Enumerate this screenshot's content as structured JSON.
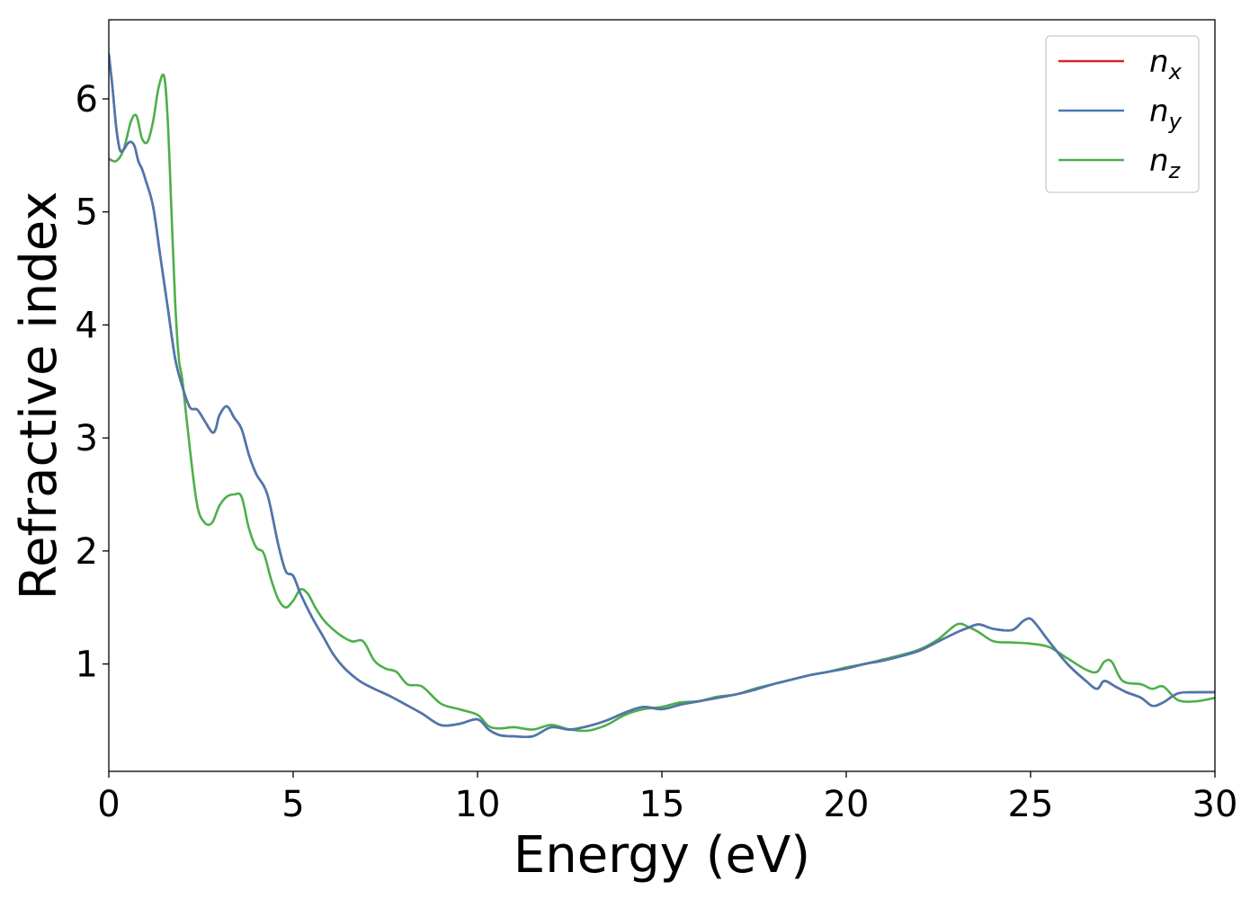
{
  "chart_data": {
    "type": "line",
    "title": "",
    "xlabel": "Energy (eV)",
    "ylabel": "Refractive index",
    "xlim": [
      0,
      30
    ],
    "ylim": [
      0.05,
      6.7
    ],
    "xticks": [
      0,
      5,
      10,
      15,
      20,
      25,
      30
    ],
    "xtick_labels": [
      "0",
      "5",
      "10",
      "15",
      "20",
      "25",
      "30"
    ],
    "yticks": [
      1,
      2,
      3,
      4,
      5,
      6
    ],
    "ytick_labels": [
      "1",
      "2",
      "3",
      "4",
      "5",
      "6"
    ],
    "grid": false,
    "legend_position": "top-right",
    "colors": {
      "nx": "#d62728",
      "ny": "#4a78b0",
      "nz": "#4daf4a"
    },
    "series": [
      {
        "key": "nx",
        "name": "n",
        "subscript": "x",
        "color": "#d62728",
        "x": [
          0,
          0.1,
          0.2,
          0.3,
          0.4,
          0.5,
          0.6,
          0.7,
          0.8,
          0.9,
          1.0,
          1.2,
          1.4,
          1.6,
          1.8,
          2.0,
          2.2,
          2.4,
          2.6,
          2.8,
          2.9,
          3.0,
          3.2,
          3.4,
          3.6,
          3.8,
          4.0,
          4.3,
          4.6,
          4.8,
          5.0,
          5.2,
          5.5,
          5.8,
          6.1,
          6.4,
          6.8,
          7.2,
          7.6,
          8.0,
          8.5,
          9.0,
          9.5,
          10.0,
          10.3,
          10.6,
          11.0,
          11.5,
          12.0,
          12.5,
          13.0,
          13.5,
          14.0,
          14.5,
          15.0,
          15.5,
          16.0,
          16.5,
          17.0,
          17.5,
          18.0,
          18.5,
          19.0,
          19.5,
          20.0,
          20.5,
          21.0,
          21.5,
          22.0,
          22.5,
          23.0,
          23.3,
          23.6,
          24.0,
          24.5,
          24.8,
          25.0,
          25.2,
          25.5,
          26.0,
          26.5,
          26.8,
          27.0,
          27.3,
          27.6,
          28.0,
          28.3,
          28.6,
          29.0,
          29.5,
          30.0
        ],
        "y": [
          6.4,
          6.1,
          5.75,
          5.55,
          5.55,
          5.6,
          5.62,
          5.58,
          5.45,
          5.38,
          5.28,
          5.05,
          4.6,
          4.15,
          3.7,
          3.45,
          3.27,
          3.25,
          3.15,
          3.05,
          3.08,
          3.2,
          3.28,
          3.18,
          3.08,
          2.85,
          2.68,
          2.5,
          2.05,
          1.82,
          1.78,
          1.62,
          1.42,
          1.25,
          1.08,
          0.96,
          0.85,
          0.78,
          0.72,
          0.65,
          0.56,
          0.46,
          0.47,
          0.51,
          0.42,
          0.37,
          0.36,
          0.36,
          0.44,
          0.42,
          0.45,
          0.5,
          0.57,
          0.62,
          0.6,
          0.64,
          0.67,
          0.7,
          0.73,
          0.77,
          0.82,
          0.86,
          0.9,
          0.93,
          0.96,
          1.0,
          1.03,
          1.07,
          1.12,
          1.2,
          1.28,
          1.32,
          1.35,
          1.31,
          1.3,
          1.38,
          1.4,
          1.33,
          1.2,
          1.0,
          0.85,
          0.78,
          0.85,
          0.8,
          0.75,
          0.7,
          0.63,
          0.66,
          0.74,
          0.75,
          0.75
        ]
      },
      {
        "key": "ny",
        "name": "n",
        "subscript": "y",
        "color": "#4a78b0",
        "x": [
          0,
          0.1,
          0.2,
          0.3,
          0.4,
          0.5,
          0.6,
          0.7,
          0.8,
          0.9,
          1.0,
          1.2,
          1.4,
          1.6,
          1.8,
          2.0,
          2.2,
          2.4,
          2.6,
          2.8,
          2.9,
          3.0,
          3.2,
          3.4,
          3.6,
          3.8,
          4.0,
          4.3,
          4.6,
          4.8,
          5.0,
          5.2,
          5.5,
          5.8,
          6.1,
          6.4,
          6.8,
          7.2,
          7.6,
          8.0,
          8.5,
          9.0,
          9.5,
          10.0,
          10.3,
          10.6,
          11.0,
          11.5,
          12.0,
          12.5,
          13.0,
          13.5,
          14.0,
          14.5,
          15.0,
          15.5,
          16.0,
          16.5,
          17.0,
          17.5,
          18.0,
          18.5,
          19.0,
          19.5,
          20.0,
          20.5,
          21.0,
          21.5,
          22.0,
          22.5,
          23.0,
          23.3,
          23.6,
          24.0,
          24.5,
          24.8,
          25.0,
          25.2,
          25.5,
          26.0,
          26.5,
          26.8,
          27.0,
          27.3,
          27.6,
          28.0,
          28.3,
          28.6,
          29.0,
          29.5,
          30.0
        ],
        "y": [
          6.4,
          6.1,
          5.75,
          5.55,
          5.55,
          5.6,
          5.62,
          5.58,
          5.45,
          5.38,
          5.28,
          5.05,
          4.6,
          4.15,
          3.7,
          3.45,
          3.27,
          3.25,
          3.15,
          3.05,
          3.08,
          3.2,
          3.28,
          3.18,
          3.08,
          2.85,
          2.68,
          2.5,
          2.05,
          1.82,
          1.78,
          1.62,
          1.42,
          1.25,
          1.08,
          0.96,
          0.85,
          0.78,
          0.72,
          0.65,
          0.56,
          0.46,
          0.47,
          0.51,
          0.42,
          0.37,
          0.36,
          0.36,
          0.44,
          0.42,
          0.45,
          0.5,
          0.57,
          0.62,
          0.6,
          0.64,
          0.67,
          0.7,
          0.73,
          0.77,
          0.82,
          0.86,
          0.9,
          0.93,
          0.96,
          1.0,
          1.03,
          1.07,
          1.12,
          1.2,
          1.28,
          1.32,
          1.35,
          1.31,
          1.3,
          1.38,
          1.4,
          1.33,
          1.2,
          1.0,
          0.85,
          0.78,
          0.85,
          0.8,
          0.75,
          0.7,
          0.63,
          0.66,
          0.74,
          0.75,
          0.75
        ]
      },
      {
        "key": "nz",
        "name": "n",
        "subscript": "z",
        "color": "#4daf4a",
        "x": [
          0,
          0.2,
          0.4,
          0.6,
          0.75,
          0.9,
          1.05,
          1.2,
          1.35,
          1.5,
          1.6,
          1.7,
          1.8,
          1.9,
          2.0,
          2.2,
          2.4,
          2.6,
          2.8,
          3.0,
          3.2,
          3.4,
          3.6,
          3.8,
          4.0,
          4.2,
          4.4,
          4.6,
          4.8,
          5.0,
          5.2,
          5.4,
          5.6,
          5.8,
          6.0,
          6.3,
          6.6,
          6.9,
          7.2,
          7.5,
          7.8,
          8.1,
          8.5,
          9.0,
          9.5,
          10.0,
          10.3,
          10.6,
          11.0,
          11.5,
          12.0,
          12.5,
          13.0,
          13.5,
          14.0,
          14.5,
          15.0,
          15.5,
          16.0,
          16.5,
          17.0,
          17.5,
          18.0,
          18.5,
          19.0,
          19.5,
          20.0,
          20.5,
          21.0,
          21.5,
          22.0,
          22.5,
          23.0,
          23.3,
          23.6,
          24.0,
          24.5,
          25.0,
          25.5,
          26.0,
          26.5,
          26.8,
          27.0,
          27.2,
          27.5,
          28.0,
          28.3,
          28.6,
          29.0,
          29.5,
          30.0
        ],
        "y": [
          5.47,
          5.45,
          5.55,
          5.8,
          5.85,
          5.65,
          5.62,
          5.8,
          6.1,
          6.2,
          5.8,
          5.0,
          4.2,
          3.7,
          3.5,
          2.9,
          2.4,
          2.25,
          2.25,
          2.4,
          2.48,
          2.5,
          2.48,
          2.2,
          2.03,
          1.98,
          1.75,
          1.57,
          1.5,
          1.56,
          1.66,
          1.62,
          1.5,
          1.4,
          1.33,
          1.25,
          1.2,
          1.2,
          1.03,
          0.96,
          0.93,
          0.82,
          0.8,
          0.65,
          0.6,
          0.55,
          0.45,
          0.43,
          0.44,
          0.42,
          0.46,
          0.42,
          0.41,
          0.46,
          0.55,
          0.6,
          0.62,
          0.66,
          0.67,
          0.71,
          0.73,
          0.78,
          0.82,
          0.86,
          0.9,
          0.93,
          0.97,
          1.0,
          1.04,
          1.08,
          1.13,
          1.22,
          1.35,
          1.33,
          1.28,
          1.2,
          1.19,
          1.18,
          1.15,
          1.05,
          0.95,
          0.93,
          1.02,
          1.02,
          0.85,
          0.82,
          0.78,
          0.8,
          0.68,
          0.67,
          0.7
        ]
      }
    ]
  }
}
